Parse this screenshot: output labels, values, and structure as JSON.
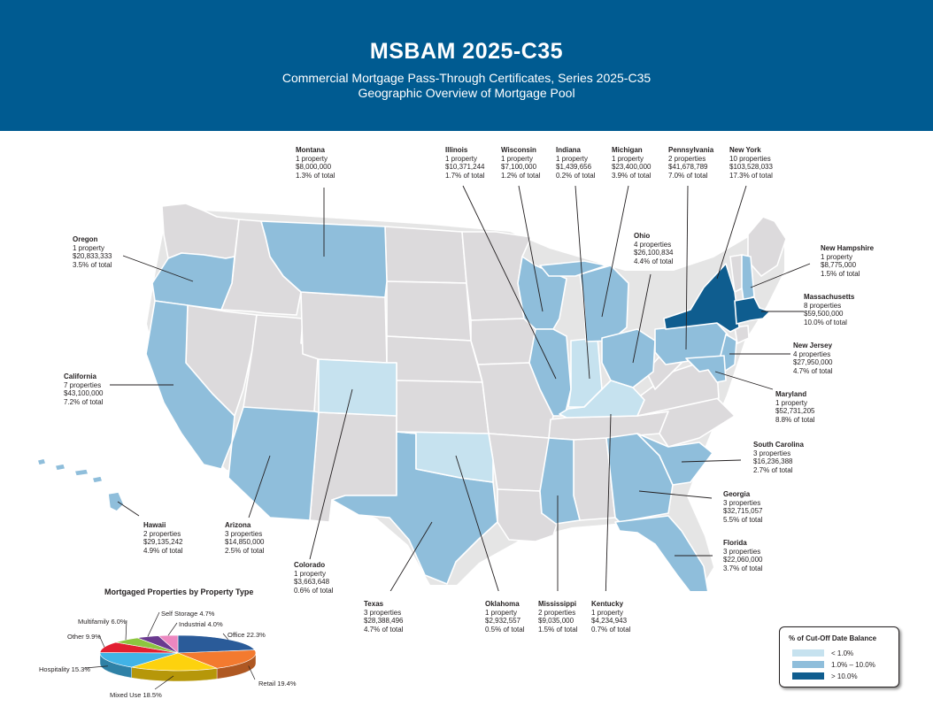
{
  "header": {
    "title": "MSBAM 2025-C35",
    "subtitle": "Commercial Mortgage Pass-Through Certificates, Series 2025-C35",
    "subtitle2": "Geographic Overview of Mortgage Pool"
  },
  "colors": {
    "banner": "#005b91",
    "tier_low": "#c6e2ef",
    "tier_mid": "#8fbedb",
    "tier_high": "#0f5d8f",
    "not_in_pool": "#dcdadc"
  },
  "states": [
    {
      "name": "Montana",
      "line1": "1 property",
      "line2": "$8,000,000",
      "line3": "1.3% of total",
      "tier": "mid"
    },
    {
      "name": "Illinois",
      "line1": "1 property",
      "line2": "$10,371,244",
      "line3": "1.7% of total",
      "tier": "mid"
    },
    {
      "name": "Wisconsin",
      "line1": "1 property",
      "line2": "$7,100,000",
      "line3": "1.2% of total",
      "tier": "mid"
    },
    {
      "name": "Indiana",
      "line1": "1 property",
      "line2": "$1,439,656",
      "line3": "0.2% of total",
      "tier": "low"
    },
    {
      "name": "Michigan",
      "line1": "1 property",
      "line2": "$23,400,000",
      "line3": "3.9% of total",
      "tier": "mid"
    },
    {
      "name": "Pennsylvania",
      "line1": "2 properties",
      "line2": "$41,678,789",
      "line3": "7.0% of total",
      "tier": "mid"
    },
    {
      "name": "New York",
      "line1": "10 properties",
      "line2": "$103,528,033",
      "line3": "17.3% of total",
      "tier": "high"
    },
    {
      "name": "Oregon",
      "line1": "1 property",
      "line2": "$20,833,333",
      "line3": "3.5% of total",
      "tier": "mid"
    },
    {
      "name": "Ohio",
      "line1": "4 properties",
      "line2": "$26,100,834",
      "line3": "4.4% of total",
      "tier": "mid"
    },
    {
      "name": "New Hampshire",
      "line1": "1 property",
      "line2": "$8,775,000",
      "line3": "1.5% of total",
      "tier": "mid"
    },
    {
      "name": "Massachusetts",
      "line1": "8 properties",
      "line2": "$59,500,000",
      "line3": "10.0% of total",
      "tier": "high"
    },
    {
      "name": "New Jersey",
      "line1": "4 properties",
      "line2": "$27,950,000",
      "line3": "4.7% of total",
      "tier": "mid"
    },
    {
      "name": "California",
      "line1": "7 properties",
      "line2": "$43,100,000",
      "line3": "7.2% of total",
      "tier": "mid"
    },
    {
      "name": "Maryland",
      "line1": "1 property",
      "line2": "$52,731,205",
      "line3": "8.8% of total",
      "tier": "mid"
    },
    {
      "name": "South Carolina",
      "line1": "3 properties",
      "line2": "$16,236,388",
      "line3": "2.7% of total",
      "tier": "mid"
    },
    {
      "name": "Georgia",
      "line1": "3 properties",
      "line2": "$32,715,057",
      "line3": "5.5% of total",
      "tier": "mid"
    },
    {
      "name": "Hawaii",
      "line1": "2 properties",
      "line2": "$29,135,242",
      "line3": "4.9% of total",
      "tier": "mid"
    },
    {
      "name": "Arizona",
      "line1": "3 properties",
      "line2": "$14,850,000",
      "line3": "2.5% of total",
      "tier": "mid"
    },
    {
      "name": "Florida",
      "line1": "3 properties",
      "line2": "$22,060,000",
      "line3": "3.7% of total",
      "tier": "mid"
    },
    {
      "name": "Colorado",
      "line1": "1 property",
      "line2": "$3,663,648",
      "line3": "0.6% of total",
      "tier": "low"
    },
    {
      "name": "Texas",
      "line1": "3 properties",
      "line2": "$28,388,496",
      "line3": "4.7% of total",
      "tier": "mid"
    },
    {
      "name": "Oklahoma",
      "line1": "1 property",
      "line2": "$2,932,557",
      "line3": "0.5% of total",
      "tier": "low"
    },
    {
      "name": "Mississippi",
      "line1": "2 properties",
      "line2": "$9,035,000",
      "line3": "1.5% of total",
      "tier": "mid"
    },
    {
      "name": "Kentucky",
      "line1": "1 property",
      "line2": "$4,234,943",
      "line3": "0.7% of total",
      "tier": "low"
    }
  ],
  "pie": {
    "title": "Mortgaged Properties by Property Type",
    "slices": [
      {
        "label": "Office 22.3%",
        "value": 22.3,
        "color": "#2a5b99"
      },
      {
        "label": "Retail 19.4%",
        "value": 19.4,
        "color": "#f37a2f"
      },
      {
        "label": "Mixed Use 18.5%",
        "value": 18.5,
        "color": "#fdd20e"
      },
      {
        "label": "Hospitality 15.3%",
        "value": 15.3,
        "color": "#41b3e6"
      },
      {
        "label": "Other 9.9%",
        "value": 9.9,
        "color": "#e21f30"
      },
      {
        "label": "Multifamily 6.0%",
        "value": 6.0,
        "color": "#8dc53f"
      },
      {
        "label": "Self Storage 4.7%",
        "value": 4.7,
        "color": "#6a3a8f"
      },
      {
        "label": "Industrial 4.0%",
        "value": 4.0,
        "color": "#ec87c0"
      }
    ]
  },
  "legend": {
    "title": "% of Cut-Off Date Balance",
    "items": [
      {
        "label": "< 1.0%",
        "color": "#c6e2ef"
      },
      {
        "label": "1.0% – 10.0%",
        "color": "#8fbedb"
      },
      {
        "label": "> 10.0%",
        "color": "#0f5d8f"
      }
    ]
  }
}
